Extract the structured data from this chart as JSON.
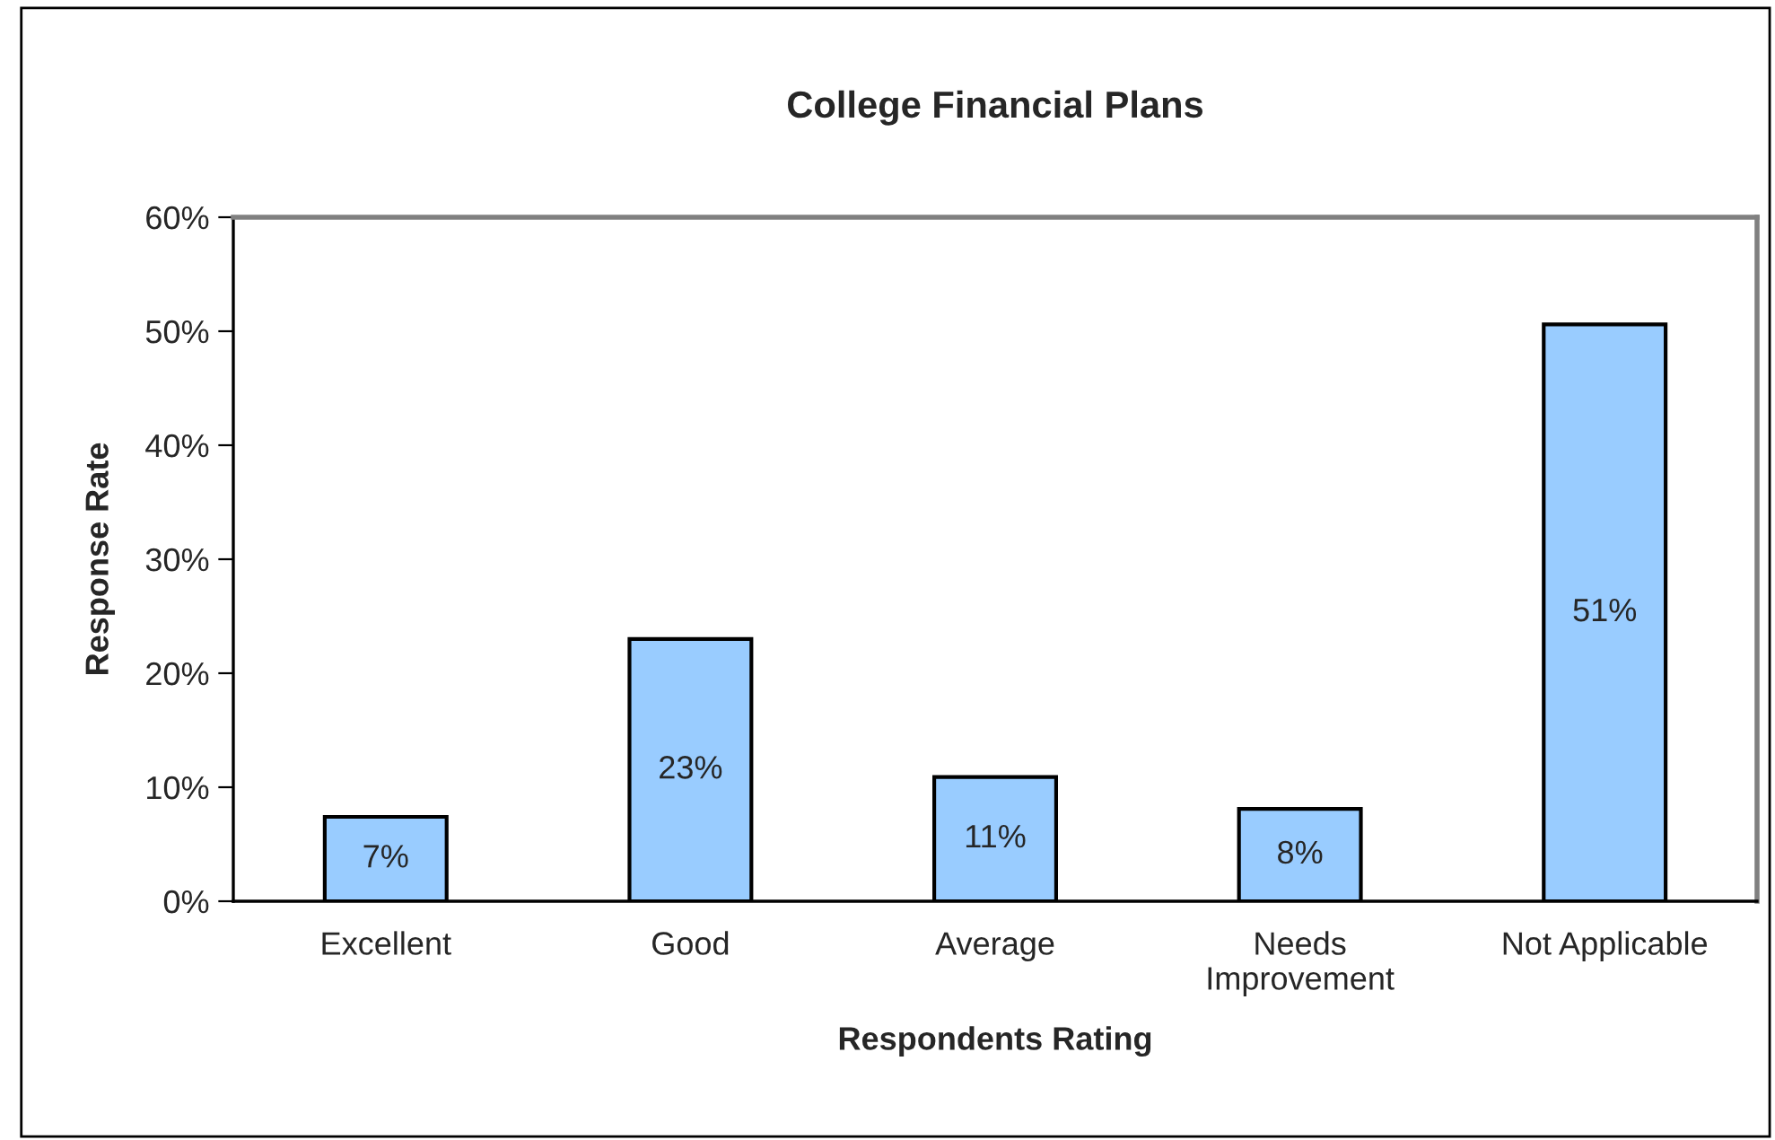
{
  "chart_data": {
    "type": "bar",
    "title": "College Financial Plans",
    "xlabel": "Respondents Rating",
    "ylabel": "Response Rate",
    "categories": [
      "Excellent",
      "Good",
      "Average",
      "Needs\nImprovement",
      "Not Applicable"
    ],
    "values": [
      7.4,
      23.0,
      10.9,
      8.1,
      50.6
    ],
    "value_labels": [
      "7%",
      "23%",
      "11%",
      "8%",
      "51%"
    ],
    "color": "#99ccff",
    "ylim": [
      0,
      60
    ],
    "yticks": [
      {
        "value": 0,
        "label": "0%"
      },
      {
        "value": 10,
        "label": "10%"
      },
      {
        "value": 20,
        "label": "20%"
      },
      {
        "value": 30,
        "label": "30%"
      },
      {
        "value": 40,
        "label": "40%"
      },
      {
        "value": 50,
        "label": "50%"
      },
      {
        "value": 60,
        "label": "60%"
      }
    ],
    "grid": false,
    "legend": false
  }
}
